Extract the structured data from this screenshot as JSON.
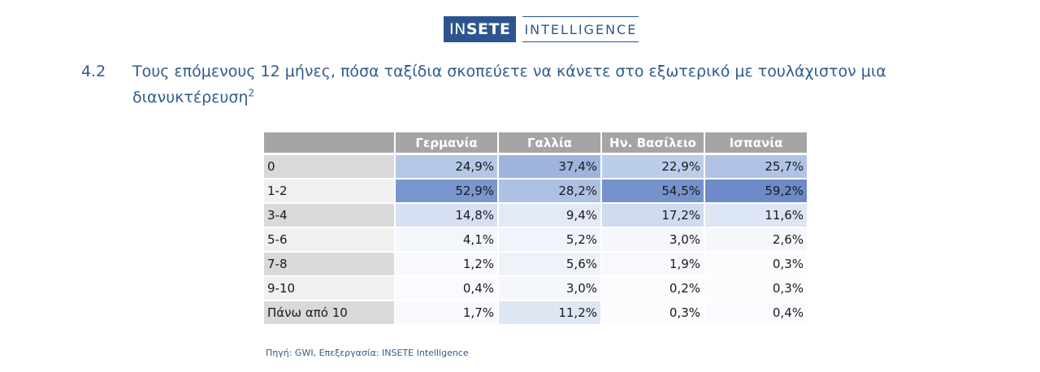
{
  "logo": {
    "left_thin": "IN",
    "left_bold": "SETE",
    "right": "INTELLIGENCE"
  },
  "heading": {
    "number": "4.2",
    "text": "Τους επόμενους 12 μήνες, πόσα ταξίδια σκοπεύετε να κάνετε στο εξωτερικό με τουλάχιστον μια διανυκτέρευση",
    "footnote": "2"
  },
  "chart_data": {
    "type": "table",
    "columns": [
      "Γερμανία",
      "Γαλλία",
      "Ην. Βασίλειο",
      "Ισπανία"
    ],
    "rows": [
      {
        "label": "0",
        "values": [
          "24,9%",
          "37,4%",
          "22,9%",
          "25,7%"
        ],
        "colors": [
          "#b4c7e7",
          "#9fb4dc",
          "#bccdea",
          "#b0c3e6"
        ]
      },
      {
        "label": "1-2",
        "values": [
          "52,9%",
          "28,2%",
          "54,5%",
          "59,2%"
        ],
        "colors": [
          "#7a96cf",
          "#adc1e5",
          "#7692cd",
          "#6d8bc9"
        ]
      },
      {
        "label": "3-4",
        "values": [
          "14,8%",
          "9,4%",
          "17,2%",
          "11,6%"
        ],
        "colors": [
          "#d6e0f2",
          "#e3eaf6",
          "#cfdbf0",
          "#dde6f4"
        ]
      },
      {
        "label": "5-6",
        "values": [
          "4,1%",
          "5,2%",
          "3,0%",
          "2,6%"
        ],
        "colors": [
          "#f3f6fb",
          "#f1f4fa",
          "#f5f7fc",
          "#f6f8fc"
        ]
      },
      {
        "label": "7-8",
        "values": [
          "1,2%",
          "5,6%",
          "1,9%",
          "0,3%"
        ],
        "colors": [
          "#f8f9fd",
          "#eef2f9",
          "#f7f9fd",
          "#fbfcfe"
        ]
      },
      {
        "label": "9-10",
        "values": [
          "0,4%",
          "3,0%",
          "0,2%",
          "0,3%"
        ],
        "colors": [
          "#fafbfe",
          "#f5f7fc",
          "#fcfcfe",
          "#fbfcfe"
        ]
      },
      {
        "label": "Πάνω από 10",
        "values": [
          "1,7%",
          "11,2%",
          "0,3%",
          "0,4%"
        ],
        "colors": [
          "#f8f9fd",
          "#dfe7f5",
          "#fbfcfe",
          "#fafbfe"
        ]
      }
    ]
  },
  "source": "Πηγή: GWI, Επεξεργασία: INSETE Intelligence"
}
